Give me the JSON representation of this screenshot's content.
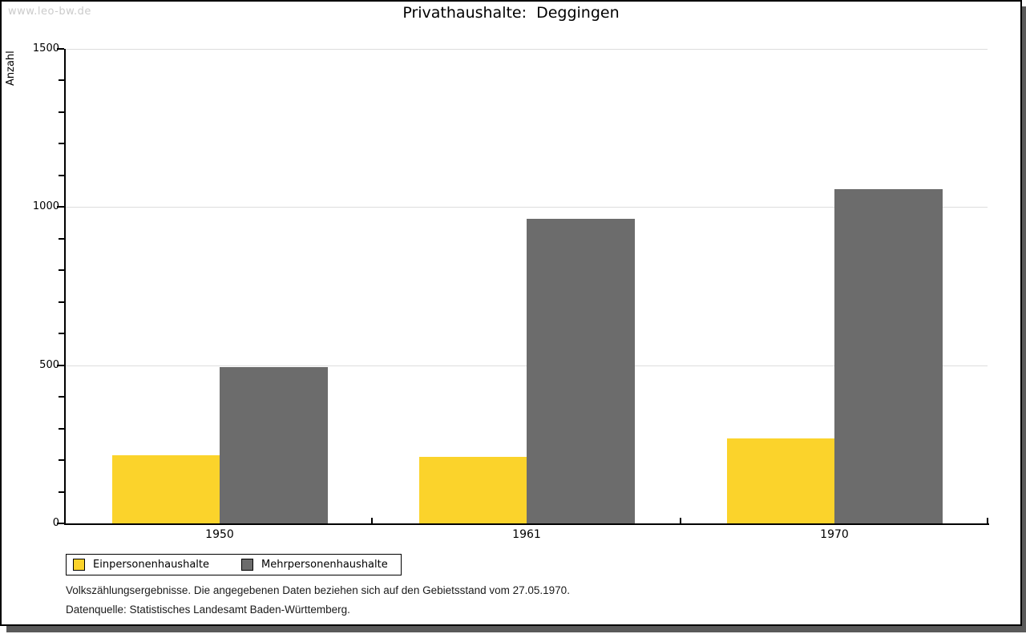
{
  "watermark": "www.leo-bw.de",
  "title": "Privathaushalte:  Deggingen",
  "chart_data": {
    "type": "bar",
    "title": "Privathaushalte: Deggingen",
    "xlabel": "",
    "ylabel": "Anzahl",
    "categories": [
      "1950",
      "1961",
      "1970"
    ],
    "series": [
      {
        "name": "Einpersonenhaushalte",
        "color": "#fbd32b",
        "values": [
          215,
          210,
          268
        ]
      },
      {
        "name": "Mehrpersonenhaushalte",
        "color": "#6c6c6c",
        "values": [
          493,
          963,
          1057
        ]
      }
    ],
    "ylim": [
      0,
      1500
    ],
    "ytick_major_step": 500,
    "ytick_minor_step": 100,
    "ytick_labels": [
      "0",
      "500",
      "1000",
      "1500"
    ],
    "grid": true,
    "legend_position": "bottom-left"
  },
  "footer": {
    "line1": "Volkszählungsergebnisse. Die angegebenen Daten beziehen sich auf den Gebietsstand vom 27.05.1970.",
    "line2": "Datenquelle: Statistisches Landesamt Baden-Württemberg."
  },
  "colors": {
    "bar_yellow": "#fbd32b",
    "bar_gray": "#6c6c6c",
    "gridline": "#dddddd",
    "watermark": "#cbcbcb",
    "shadow": "#5a5a5a",
    "axis": "#000000"
  }
}
